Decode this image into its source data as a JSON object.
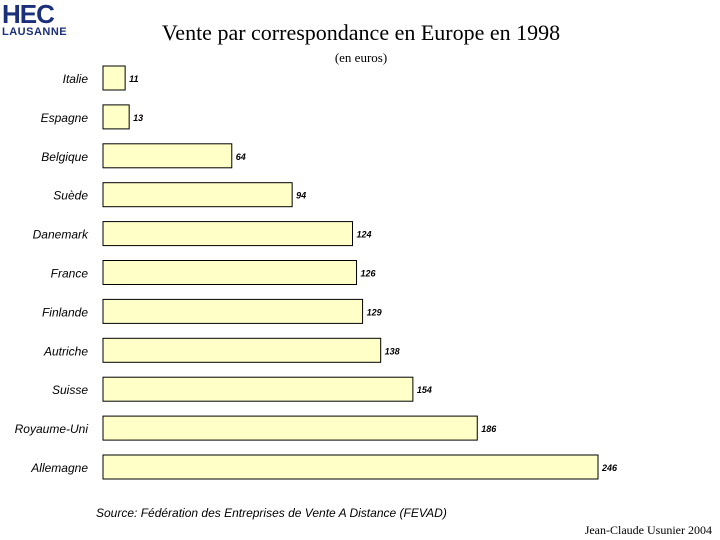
{
  "logo": {
    "top": "HEC",
    "bottom": "LAUSANNE"
  },
  "chart_data": {
    "type": "bar",
    "orientation": "horizontal",
    "title": "Vente par correspondance en Europe en 1998",
    "subtitle": "(en euros)",
    "categories": [
      "Italie",
      "Espagne",
      "Belgique",
      "Suède",
      "Danemark",
      "France",
      "Finlande",
      "Autriche",
      "Suisse",
      "Royaume-Uni",
      "Allemagne"
    ],
    "values": [
      11,
      13,
      64,
      94,
      124,
      126,
      129,
      138,
      154,
      186,
      246
    ],
    "value_labels": [
      "11",
      "13",
      "64",
      "94",
      "124",
      "126",
      "129",
      "138",
      "154",
      "186",
      "246"
    ],
    "xlim": [
      0,
      246
    ],
    "grid": false,
    "legend": "none",
    "colors": {
      "bar_fill": "#ffffc8",
      "bar_stroke": "#000000"
    }
  },
  "footer": {
    "source": "Source: Fédération des Entreprises de Vente A Distance (FEVAD)",
    "author": "Jean-Claude Usunier 2004"
  }
}
